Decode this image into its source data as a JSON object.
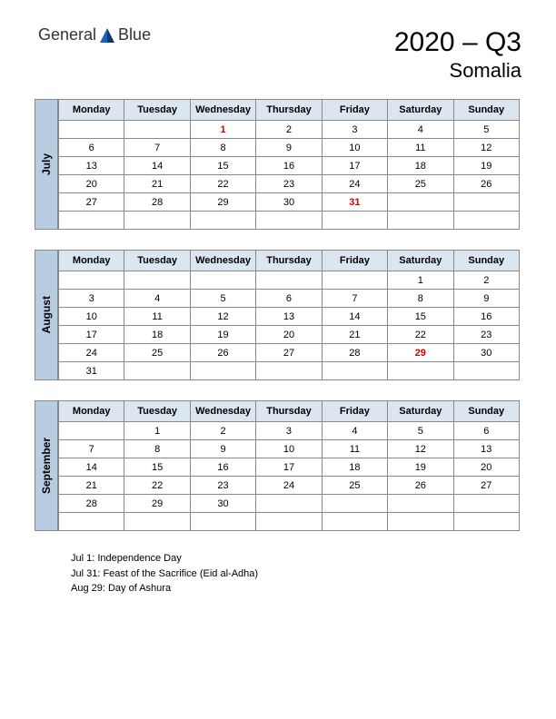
{
  "logo": {
    "text_a": "General",
    "text_b": "Blue"
  },
  "header": {
    "year_quarter": "2020 – Q3",
    "region": "Somalia"
  },
  "colors": {
    "month_tab_bg": "#b8cde2",
    "header_row_bg": "#dbe6f1",
    "border": "#888888",
    "holiday_text": "#d40000",
    "logo_blue": "#1565c0",
    "logo_dark": "#0d3b66"
  },
  "dayHeaders": [
    "Monday",
    "Tuesday",
    "Wednesday",
    "Thursday",
    "Friday",
    "Saturday",
    "Sunday"
  ],
  "months": [
    {
      "name": "July",
      "weeks": [
        [
          {
            "d": ""
          },
          {
            "d": ""
          },
          {
            "d": "1",
            "h": true
          },
          {
            "d": "2"
          },
          {
            "d": "3"
          },
          {
            "d": "4"
          },
          {
            "d": "5"
          }
        ],
        [
          {
            "d": "6"
          },
          {
            "d": "7"
          },
          {
            "d": "8"
          },
          {
            "d": "9"
          },
          {
            "d": "10"
          },
          {
            "d": "11"
          },
          {
            "d": "12"
          }
        ],
        [
          {
            "d": "13"
          },
          {
            "d": "14"
          },
          {
            "d": "15"
          },
          {
            "d": "16"
          },
          {
            "d": "17"
          },
          {
            "d": "18"
          },
          {
            "d": "19"
          }
        ],
        [
          {
            "d": "20"
          },
          {
            "d": "21"
          },
          {
            "d": "22"
          },
          {
            "d": "23"
          },
          {
            "d": "24"
          },
          {
            "d": "25"
          },
          {
            "d": "26"
          }
        ],
        [
          {
            "d": "27"
          },
          {
            "d": "28"
          },
          {
            "d": "29"
          },
          {
            "d": "30"
          },
          {
            "d": "31",
            "h": true
          },
          {
            "d": ""
          },
          {
            "d": ""
          }
        ],
        [
          {
            "d": ""
          },
          {
            "d": ""
          },
          {
            "d": ""
          },
          {
            "d": ""
          },
          {
            "d": ""
          },
          {
            "d": ""
          },
          {
            "d": ""
          }
        ]
      ]
    },
    {
      "name": "August",
      "weeks": [
        [
          {
            "d": ""
          },
          {
            "d": ""
          },
          {
            "d": ""
          },
          {
            "d": ""
          },
          {
            "d": ""
          },
          {
            "d": "1"
          },
          {
            "d": "2"
          }
        ],
        [
          {
            "d": "3"
          },
          {
            "d": "4"
          },
          {
            "d": "5"
          },
          {
            "d": "6"
          },
          {
            "d": "7"
          },
          {
            "d": "8"
          },
          {
            "d": "9"
          }
        ],
        [
          {
            "d": "10"
          },
          {
            "d": "11"
          },
          {
            "d": "12"
          },
          {
            "d": "13"
          },
          {
            "d": "14"
          },
          {
            "d": "15"
          },
          {
            "d": "16"
          }
        ],
        [
          {
            "d": "17"
          },
          {
            "d": "18"
          },
          {
            "d": "19"
          },
          {
            "d": "20"
          },
          {
            "d": "21"
          },
          {
            "d": "22"
          },
          {
            "d": "23"
          }
        ],
        [
          {
            "d": "24"
          },
          {
            "d": "25"
          },
          {
            "d": "26"
          },
          {
            "d": "27"
          },
          {
            "d": "28"
          },
          {
            "d": "29",
            "h": true
          },
          {
            "d": "30"
          }
        ],
        [
          {
            "d": "31"
          },
          {
            "d": ""
          },
          {
            "d": ""
          },
          {
            "d": ""
          },
          {
            "d": ""
          },
          {
            "d": ""
          },
          {
            "d": ""
          }
        ]
      ]
    },
    {
      "name": "September",
      "weeks": [
        [
          {
            "d": ""
          },
          {
            "d": "1"
          },
          {
            "d": "2"
          },
          {
            "d": "3"
          },
          {
            "d": "4"
          },
          {
            "d": "5"
          },
          {
            "d": "6"
          }
        ],
        [
          {
            "d": "7"
          },
          {
            "d": "8"
          },
          {
            "d": "9"
          },
          {
            "d": "10"
          },
          {
            "d": "11"
          },
          {
            "d": "12"
          },
          {
            "d": "13"
          }
        ],
        [
          {
            "d": "14"
          },
          {
            "d": "15"
          },
          {
            "d": "16"
          },
          {
            "d": "17"
          },
          {
            "d": "18"
          },
          {
            "d": "19"
          },
          {
            "d": "20"
          }
        ],
        [
          {
            "d": "21"
          },
          {
            "d": "22"
          },
          {
            "d": "23"
          },
          {
            "d": "24"
          },
          {
            "d": "25"
          },
          {
            "d": "26"
          },
          {
            "d": "27"
          }
        ],
        [
          {
            "d": "28"
          },
          {
            "d": "29"
          },
          {
            "d": "30"
          },
          {
            "d": ""
          },
          {
            "d": ""
          },
          {
            "d": ""
          },
          {
            "d": ""
          }
        ],
        [
          {
            "d": ""
          },
          {
            "d": ""
          },
          {
            "d": ""
          },
          {
            "d": ""
          },
          {
            "d": ""
          },
          {
            "d": ""
          },
          {
            "d": ""
          }
        ]
      ]
    }
  ],
  "holidays": [
    "Jul 1: Independence Day",
    "Jul 31: Feast of the Sacrifice (Eid al-Adha)",
    "Aug 29: Day of Ashura"
  ]
}
